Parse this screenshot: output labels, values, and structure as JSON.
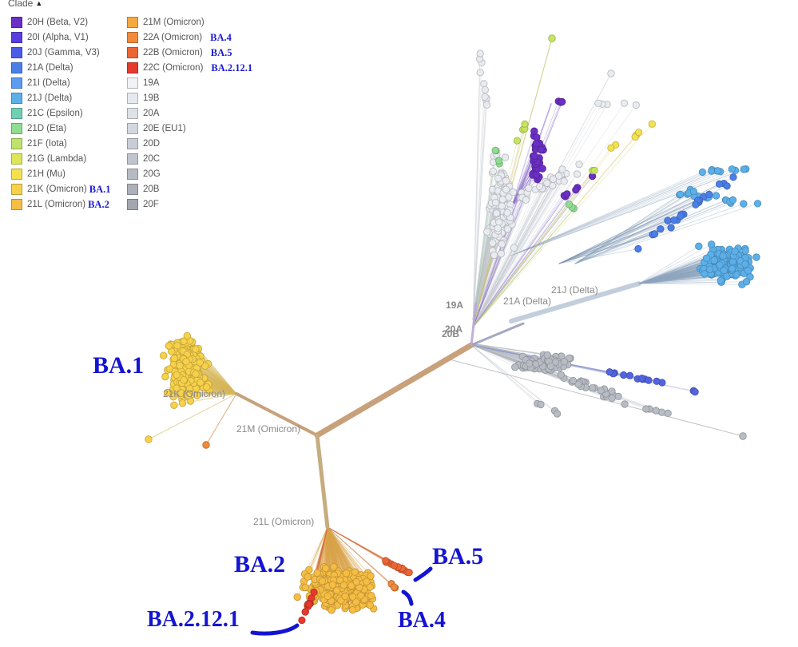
{
  "legend": {
    "title": "Clade",
    "columns": [
      [
        {
          "label": "20H (Beta, V2)",
          "color": "#6a2fc4"
        },
        {
          "label": "20I (Alpha, V1)",
          "color": "#5a3de0"
        },
        {
          "label": "20J (Gamma, V3)",
          "color": "#4c5ae8"
        },
        {
          "label": "21A (Delta)",
          "color": "#4b7fe8"
        },
        {
          "label": "21I (Delta)",
          "color": "#5b9cf0"
        },
        {
          "label": "21J (Delta)",
          "color": "#5cb0ea"
        },
        {
          "label": "21C (Epsilon)",
          "color": "#6fd0b4"
        },
        {
          "label": "21D (Eta)",
          "color": "#8fdc92"
        },
        {
          "label": "21F (Iota)",
          "color": "#bde36b"
        },
        {
          "label": "21G (Lambda)",
          "color": "#dde55a"
        },
        {
          "label": "21H (Mu)",
          "color": "#f3e150"
        },
        {
          "label": "21K (Omicron)",
          "color": "#f7d14a",
          "tag": "BA.1"
        },
        {
          "label": "21L (Omicron)",
          "color": "#f6bd44",
          "tag": "BA.2"
        }
      ],
      [
        {
          "label": "21M (Omicron)",
          "color": "#f5a83e"
        },
        {
          "label": "22A (Omicron)",
          "color": "#f18a3a",
          "tag": "BA.4"
        },
        {
          "label": "22B (Omicron)",
          "color": "#ec6635",
          "tag": "BA.5"
        },
        {
          "label": "22C (Omicron)",
          "color": "#e53a2c",
          "tag": "BA.2.12.1"
        },
        {
          "label": "19A",
          "color": "#f0f2f6"
        },
        {
          "label": "19B",
          "color": "#e6eaf0"
        },
        {
          "label": "20A",
          "color": "#dde1e8"
        },
        {
          "label": "20E (EU1)",
          "color": "#d3d8e0"
        },
        {
          "label": "20D",
          "color": "#c9ced6"
        },
        {
          "label": "20C",
          "color": "#c0c5cd"
        },
        {
          "label": "20G",
          "color": "#b6bbc3"
        },
        {
          "label": "20B",
          "color": "#acb1b9"
        },
        {
          "label": "20F",
          "color": "#a3a7af"
        }
      ]
    ]
  },
  "tree": {
    "node_labels": [
      "21K (Omicron)",
      "21M (Omicron)",
      "21L (Omicron)",
      "19A",
      "21A (Delta)",
      "21J (Delta)",
      "20A",
      "20B"
    ],
    "cluster_colors": {
      "ba1": "#f7d14a",
      "ba2": "#f6bd44",
      "ba2121": "#e53a2c",
      "ba5": "#ec6635",
      "ba4": "#f18a3a",
      "delta21j": "#5cb0ea",
      "delta21i": "#4b7fe8",
      "grey": "#b8bcc4",
      "light": "#e8ebf0",
      "alpha": "#6a2fc4",
      "greenyellow": "#c6e460",
      "green": "#8fdc92",
      "yellow": "#f3e150"
    },
    "trunk_color": "#c8a07a",
    "annotation_color": "#1414d2"
  },
  "annotations": [
    "BA.1",
    "BA.2",
    "BA.2.12.1",
    "BA.5",
    "BA.4"
  ]
}
